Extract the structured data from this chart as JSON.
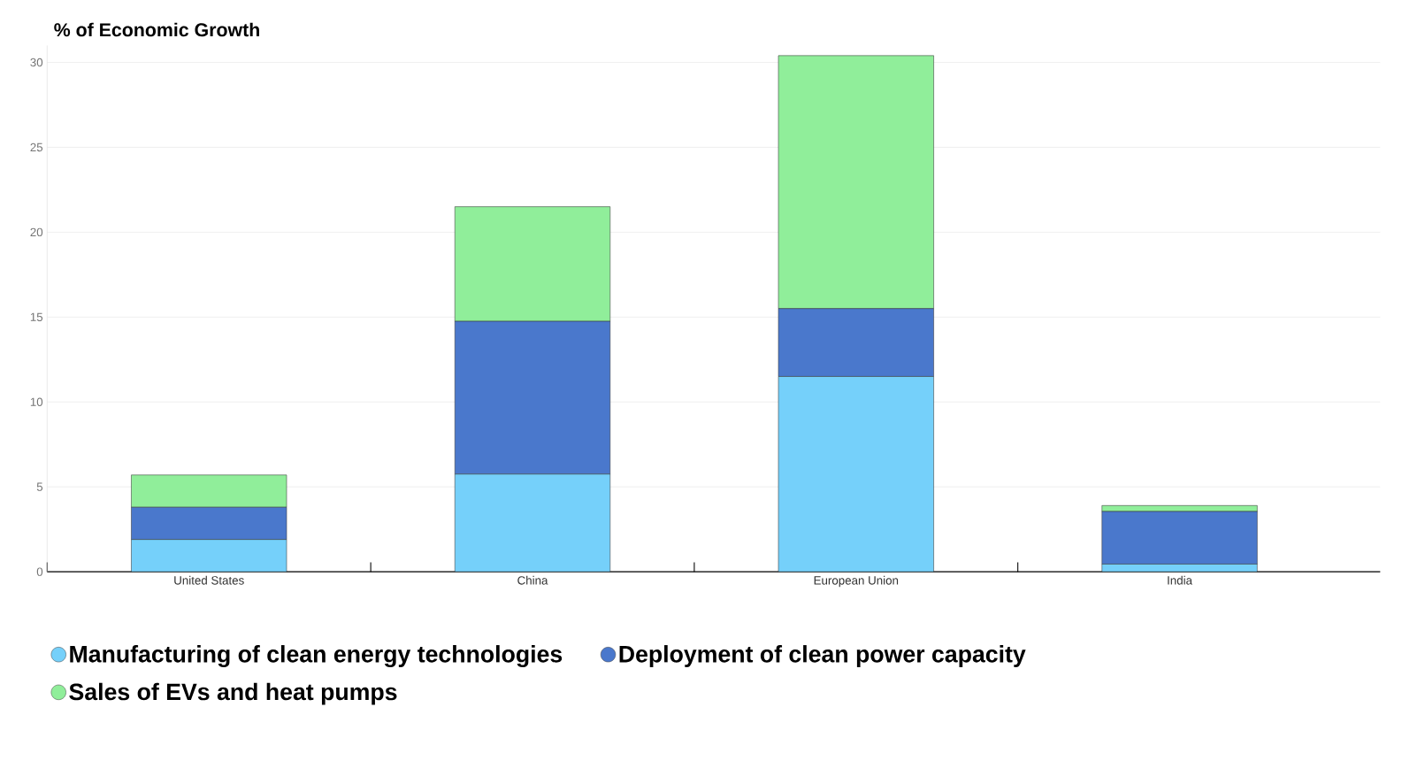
{
  "chart_data": {
    "type": "bar",
    "stacked": true,
    "ylabel": "% of Economic Growth",
    "categories": [
      "United States",
      "China",
      "European Union",
      "India"
    ],
    "series": [
      {
        "name": "Manufacturing of clean energy technologies",
        "color": "#75d0fa",
        "values": [
          1.9,
          5.75,
          11.5,
          0.45
        ]
      },
      {
        "name": "Deployment of clean power capacity",
        "color": "#4a78cc",
        "values": [
          1.9,
          9.0,
          4.0,
          3.1
        ]
      },
      {
        "name": "Sales of EVs and heat pumps",
        "color": "#90ee9a",
        "values": [
          1.9,
          6.75,
          14.9,
          0.35
        ]
      }
    ],
    "ylim": [
      0,
      31
    ],
    "yticks": [
      0,
      5,
      10,
      15,
      20,
      25,
      30
    ],
    "grid": "y",
    "legend": "bottom"
  }
}
